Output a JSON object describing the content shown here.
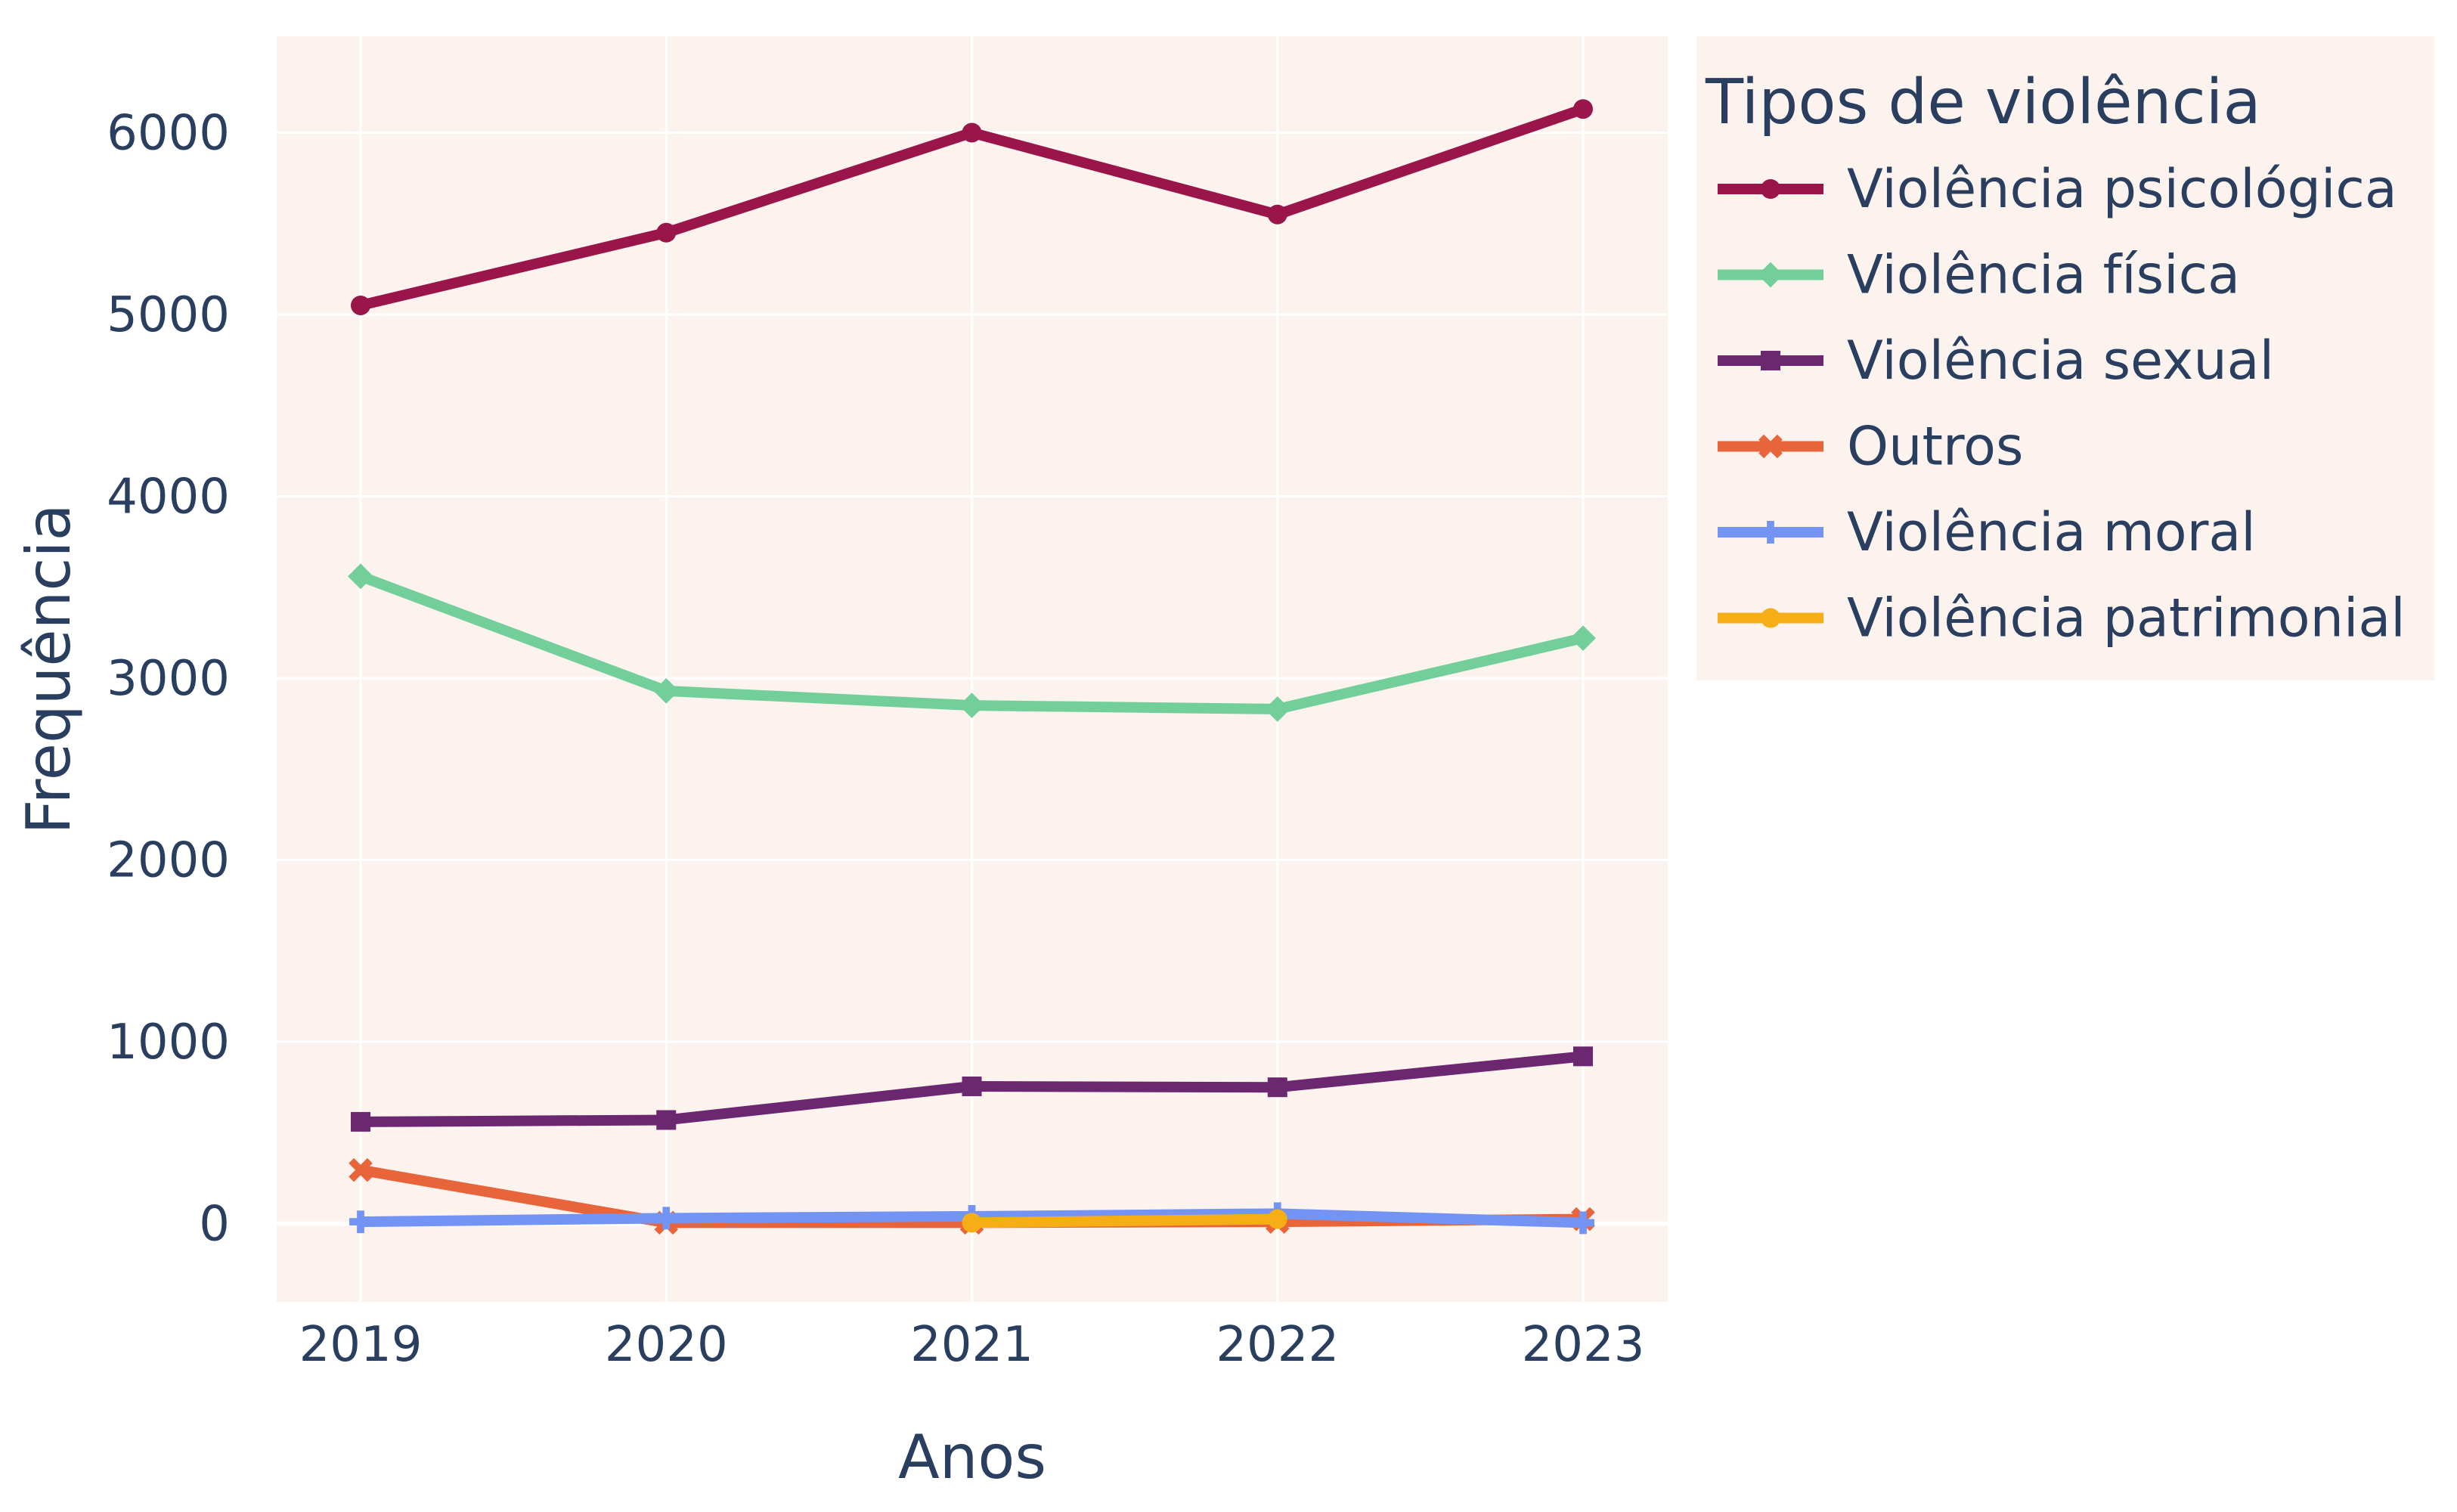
{
  "chart_data": {
    "type": "line",
    "x": [
      2019,
      2020,
      2021,
      2022,
      2023
    ],
    "x_ticks": [
      "2019",
      "2020",
      "2021",
      "2022",
      "2023"
    ],
    "y_ticks": [
      0,
      1000,
      2000,
      3000,
      4000,
      5000,
      6000
    ],
    "xlabel": "Anos",
    "ylabel": "Frequência",
    "ylim": [
      -430,
      6530
    ],
    "grid": true,
    "plot_background": "#fdf3ee",
    "legend": {
      "title": "Tipos de violência",
      "placement": "right"
    },
    "series": [
      {
        "name": "Violência psicológica",
        "color": "#99154a",
        "marker": "circle",
        "values": [
          5050,
          5450,
          6000,
          5550,
          6130
        ]
      },
      {
        "name": "Violência física",
        "color": "#72cf9a",
        "marker": "diamond",
        "values": [
          3560,
          2930,
          2850,
          2830,
          3220
        ]
      },
      {
        "name": "Violência sexual",
        "color": "#6b2770",
        "marker": "square",
        "values": [
          560,
          570,
          755,
          750,
          920
        ]
      },
      {
        "name": "Outros",
        "color": "#e8643a",
        "marker": "x",
        "values": [
          295,
          5,
          5,
          10,
          25
        ]
      },
      {
        "name": "Violência moral",
        "color": "#7394f5",
        "marker": "cross",
        "values": [
          10,
          30,
          40,
          55,
          5
        ]
      },
      {
        "name": "Violência patrimonial",
        "color": "#f6ae17",
        "marker": "circle",
        "values": [
          null,
          null,
          5,
          25,
          null
        ]
      }
    ]
  }
}
